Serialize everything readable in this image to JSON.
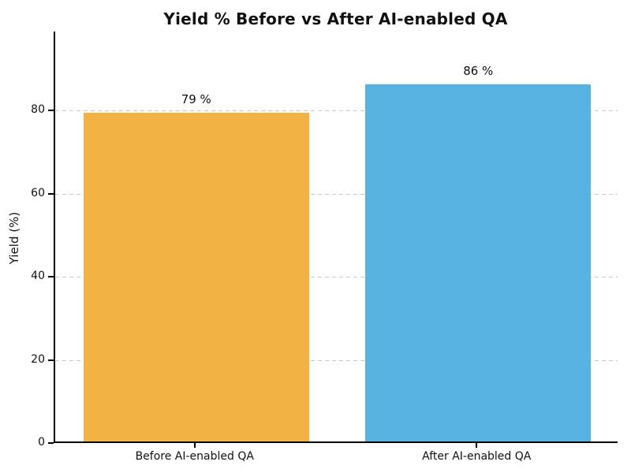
{
  "chart_data": {
    "type": "bar",
    "title": "Yield % Before vs After AI-enabled QA",
    "xlabel": "",
    "ylabel": "Yield (%)",
    "categories": [
      "Before AI-enabled QA",
      "After AI-enabled QA"
    ],
    "values": [
      79,
      86
    ],
    "value_labels": [
      "79 %",
      "86 %"
    ],
    "bar_colors": [
      "#F2B244",
      "#57B3E1"
    ],
    "ylim": [
      0,
      99
    ],
    "yticks": [
      0,
      20,
      40,
      60,
      80
    ],
    "grid": {
      "axis": "y",
      "style": "dashed",
      "color": "#C9C9C9"
    },
    "legend": "none",
    "background": "#FFFFFF"
  }
}
